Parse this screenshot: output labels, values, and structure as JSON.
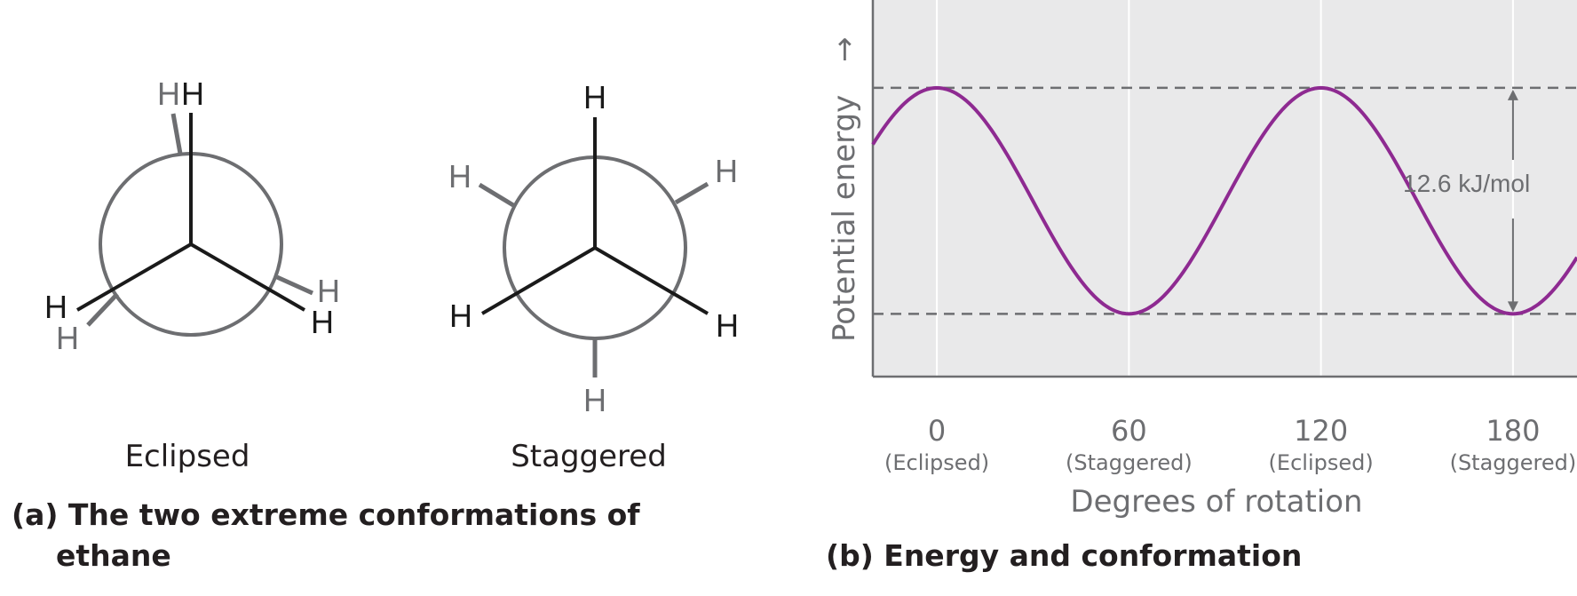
{
  "panel_a": {
    "title_line1": "(a) The two extreme conformations of",
    "title_line2": "ethane",
    "eclipsed": {
      "caption": "Eclipsed",
      "front_atoms": [
        "H",
        "H",
        "H"
      ],
      "back_atoms": [
        "H",
        "H",
        "H"
      ]
    },
    "staggered": {
      "caption": "Staggered",
      "front_atoms": [
        "H",
        "H",
        "H"
      ],
      "back_atoms": [
        "H",
        "H",
        "H"
      ]
    }
  },
  "panel_b": {
    "title": "(b) Energy and conformation",
    "chart_data": {
      "type": "line",
      "title": "",
      "xlabel": "Degrees of rotation",
      "ylabel": "Potential energy",
      "y_axis_arrow": "→",
      "xlim": [
        -20,
        200
      ],
      "x_ticks": [
        {
          "value": 0,
          "label": "0",
          "sublabel": "(Eclipsed)"
        },
        {
          "value": 60,
          "label": "60",
          "sublabel": "(Staggered)"
        },
        {
          "value": 120,
          "label": "120",
          "sublabel": "(Eclipsed)"
        },
        {
          "value": 180,
          "label": "180",
          "sublabel": "(Staggered)"
        }
      ],
      "y_units": "kJ/mol (relative)",
      "ylim": [
        -3.5,
        17.5
      ],
      "energy_max": 12.6,
      "energy_min": 0,
      "barrier_label": "12.6 kJ/mol",
      "series": [
        {
          "x": [
            -20,
            -10,
            0,
            10,
            20,
            30,
            40,
            50,
            60,
            70,
            80,
            90,
            100,
            110,
            120,
            130,
            140,
            150,
            160,
            170,
            180,
            190,
            200
          ],
          "y": [
            9.45,
            11.75,
            12.6,
            11.75,
            9.45,
            6.3,
            3.15,
            0.84,
            0,
            0.84,
            3.15,
            6.3,
            9.45,
            11.75,
            12.6,
            11.75,
            9.45,
            6.3,
            3.15,
            0.84,
            0,
            0.84,
            3.15
          ]
        }
      ],
      "grid": true,
      "colors": {
        "curve": "#8e2a91",
        "plot_background": "#e9e9ea",
        "grid": "#ffffff",
        "dashed_reference": "#6d6e71",
        "axis": "#6d6e71"
      }
    }
  }
}
